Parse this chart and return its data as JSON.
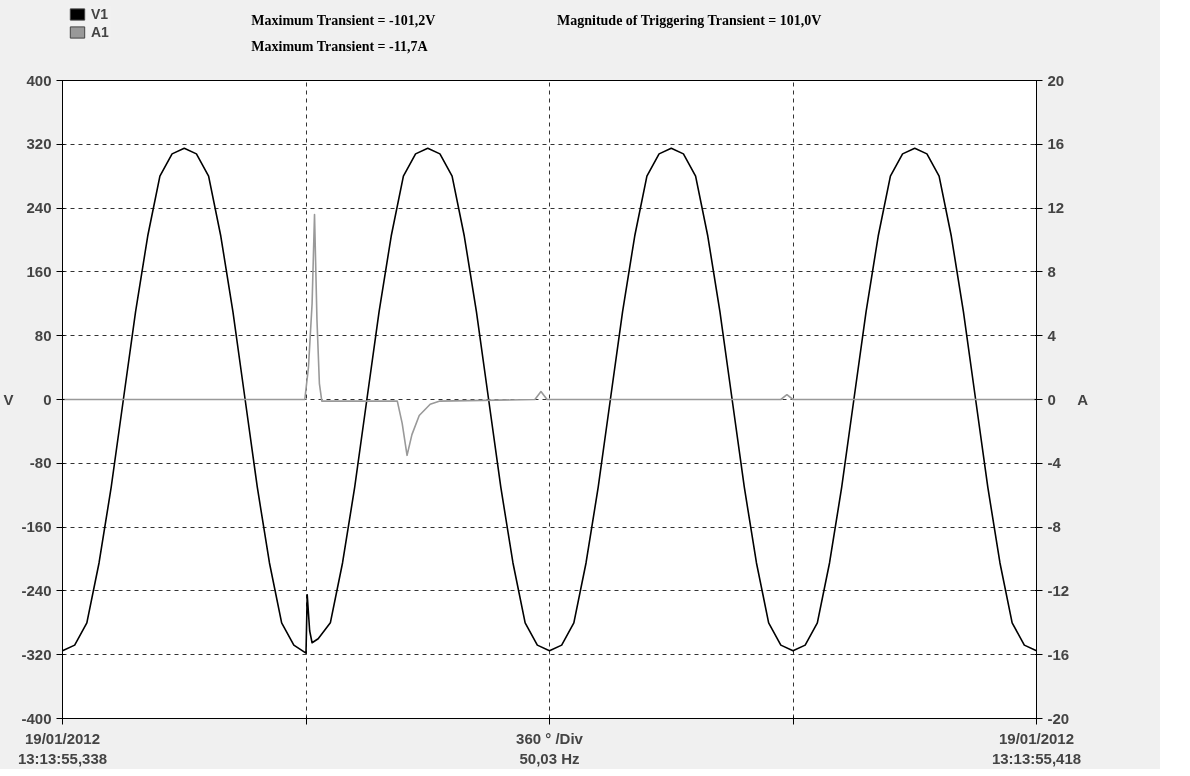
{
  "chart_data": {
    "type": "line",
    "ylabel": "V",
    "y2label": "A",
    "annotations": [
      "Maximum Transient = -101,2V",
      "Maximum Transient = -11,7A",
      "Magnitude of Triggering Transient = 101,0V"
    ],
    "xlim": [
      "2012-01-19T13:13:55.338",
      "2012-01-19T13:13:55.418"
    ],
    "xticks": [
      {
        "value": "2012-01-19T13:13:55.338",
        "label": "19/01/2012\n13:13:55,338"
      },
      {
        "value": "2012-01-19T13:13:55.358",
        "label": null
      },
      {
        "value": "2012-01-19T13:13:55.378",
        "label": "360 ° /Div\n50,03 Hz"
      },
      {
        "value": "2012-01-19T13:13:55.398",
        "label": null
      },
      {
        "value": "2012-01-19T13:13:55.418",
        "label": "19/01/2012\n13:13:55,418"
      }
    ],
    "ylim": [
      -400,
      400
    ],
    "yticks": [
      -400,
      -320,
      -240,
      -160,
      -80,
      0,
      80,
      160,
      240,
      320,
      400
    ],
    "y2lim": [
      -20,
      20
    ],
    "y2ticks": [
      -20,
      -16,
      -12,
      -8,
      -4,
      0,
      4,
      8,
      12,
      16,
      20
    ],
    "grid": true,
    "legend": "top left",
    "line_style": "solid",
    "series": [
      {
        "name": "V1",
        "color": "#000000",
        "x": [
          "2012-01-19T13:13:55.338",
          "2012-01-19T13:13:55.339",
          "2012-01-19T13:13:55.340",
          "2012-01-19T13:13:55.341",
          "2012-01-19T13:13:55.342",
          "2012-01-19T13:13:55.343",
          "2012-01-19T13:13:55.344",
          "2012-01-19T13:13:55.345",
          "2012-01-19T13:13:55.346",
          "2012-01-19T13:13:55.347",
          "2012-01-19T13:13:55.348",
          "2012-01-19T13:13:55.349",
          "2012-01-19T13:13:55.350",
          "2012-01-19T13:13:55.351",
          "2012-01-19T13:13:55.352",
          "2012-01-19T13:13:55.353",
          "2012-01-19T13:13:55.354",
          "2012-01-19T13:13:55.355",
          "2012-01-19T13:13:55.356",
          "2012-01-19T13:13:55.357",
          "2012-01-19T13:13:55.358",
          "2012-01-19T13:13:55.3581",
          "2012-01-19T13:13:55.3583",
          "2012-01-19T13:13:55.3585",
          "2012-01-19T13:13:55.359",
          "2012-01-19T13:13:55.360",
          "2012-01-19T13:13:55.361",
          "2012-01-19T13:13:55.362",
          "2012-01-19T13:13:55.363",
          "2012-01-19T13:13:55.364",
          "2012-01-19T13:13:55.365",
          "2012-01-19T13:13:55.366",
          "2012-01-19T13:13:55.367",
          "2012-01-19T13:13:55.368",
          "2012-01-19T13:13:55.369",
          "2012-01-19T13:13:55.370",
          "2012-01-19T13:13:55.371",
          "2012-01-19T13:13:55.372",
          "2012-01-19T13:13:55.373",
          "2012-01-19T13:13:55.374",
          "2012-01-19T13:13:55.375",
          "2012-01-19T13:13:55.376",
          "2012-01-19T13:13:55.377",
          "2012-01-19T13:13:55.378",
          "2012-01-19T13:13:55.379",
          "2012-01-19T13:13:55.380",
          "2012-01-19T13:13:55.381",
          "2012-01-19T13:13:55.382",
          "2012-01-19T13:13:55.383",
          "2012-01-19T13:13:55.384",
          "2012-01-19T13:13:55.385",
          "2012-01-19T13:13:55.386",
          "2012-01-19T13:13:55.387",
          "2012-01-19T13:13:55.388",
          "2012-01-19T13:13:55.389",
          "2012-01-19T13:13:55.390",
          "2012-01-19T13:13:55.391",
          "2012-01-19T13:13:55.392",
          "2012-01-19T13:13:55.393",
          "2012-01-19T13:13:55.394",
          "2012-01-19T13:13:55.395",
          "2012-01-19T13:13:55.396",
          "2012-01-19T13:13:55.397",
          "2012-01-19T13:13:55.398",
          "2012-01-19T13:13:55.399",
          "2012-01-19T13:13:55.400",
          "2012-01-19T13:13:55.401",
          "2012-01-19T13:13:55.402",
          "2012-01-19T13:13:55.403",
          "2012-01-19T13:13:55.404",
          "2012-01-19T13:13:55.405",
          "2012-01-19T13:13:55.406",
          "2012-01-19T13:13:55.407",
          "2012-01-19T13:13:55.408",
          "2012-01-19T13:13:55.409",
          "2012-01-19T13:13:55.410",
          "2012-01-19T13:13:55.411",
          "2012-01-19T13:13:55.412",
          "2012-01-19T13:13:55.413",
          "2012-01-19T13:13:55.414",
          "2012-01-19T13:13:55.415",
          "2012-01-19T13:13:55.416",
          "2012-01-19T13:13:55.417",
          "2012-01-19T13:13:55.418"
        ],
        "values": [
          -315,
          -308,
          -280,
          -205,
          -110,
          0,
          110,
          205,
          280,
          308,
          315,
          308,
          280,
          205,
          110,
          0,
          -110,
          -205,
          -280,
          -308,
          -318,
          -245,
          -290,
          -305,
          -300,
          -280,
          -205,
          -110,
          0,
          110,
          205,
          280,
          308,
          315,
          308,
          280,
          205,
          110,
          0,
          -110,
          -205,
          -280,
          -308,
          -315,
          -308,
          -280,
          -205,
          -110,
          0,
          110,
          205,
          280,
          308,
          315,
          308,
          280,
          205,
          110,
          0,
          -110,
          -205,
          -280,
          -308,
          -315,
          -308,
          -280,
          -205,
          -110,
          0,
          110,
          205,
          280,
          308,
          315,
          308,
          280,
          205,
          110,
          0,
          -110,
          -205,
          -280,
          -308,
          -315
        ]
      },
      {
        "name": "A1",
        "color": "#999999",
        "axis": "y2",
        "x": [
          "2012-01-19T13:13:55.338",
          "2012-01-19T13:13:55.3579",
          "2012-01-19T13:13:55.3582",
          "2012-01-19T13:13:55.3585",
          "2012-01-19T13:13:55.3587",
          "2012-01-19T13:13:55.3589",
          "2012-01-19T13:13:55.3591",
          "2012-01-19T13:13:55.3593",
          "2012-01-19T13:13:55.3655",
          "2012-01-19T13:13:55.3659",
          "2012-01-19T13:13:55.3663",
          "2012-01-19T13:13:55.3667",
          "2012-01-19T13:13:55.3673",
          "2012-01-19T13:13:55.3682",
          "2012-01-19T13:13:55.369",
          "2012-01-19T13:13:55.3768",
          "2012-01-19T13:13:55.3773",
          "2012-01-19T13:13:55.3778",
          "2012-01-19T13:13:55.397",
          "2012-01-19T13:13:55.3975",
          "2012-01-19T13:13:55.398",
          "2012-01-19T13:13:55.418"
        ],
        "values": [
          0,
          0,
          2,
          6,
          11.6,
          5,
          1,
          -0.1,
          -0.1,
          -1.5,
          -3.5,
          -2.2,
          -1,
          -0.3,
          -0.1,
          0,
          0.5,
          0,
          0,
          0.3,
          0,
          0
        ]
      }
    ]
  }
}
